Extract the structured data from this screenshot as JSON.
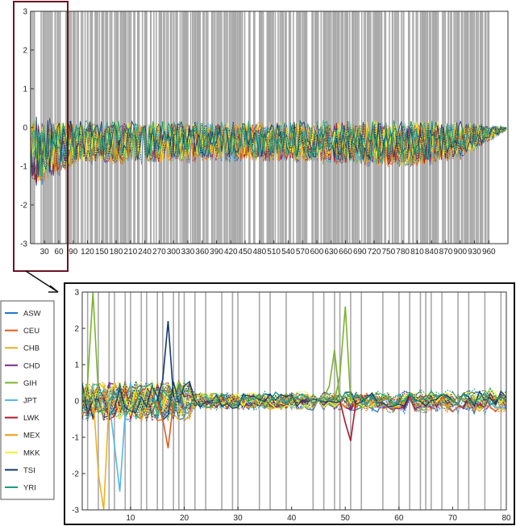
{
  "chart_data": [
    {
      "type": "line",
      "panel": "overview",
      "xlim": [
        1,
        1000
      ],
      "ylim": [
        -3,
        3
      ],
      "yticks": [
        -3,
        -2,
        -1,
        0,
        1,
        2,
        3
      ],
      "xticks": [
        30,
        60,
        90,
        120,
        150,
        180,
        210,
        240,
        270,
        300,
        330,
        360,
        390,
        420,
        450,
        480,
        510,
        540,
        570,
        600,
        630,
        660,
        690,
        720,
        750,
        780,
        810,
        840,
        870,
        900,
        930,
        960
      ],
      "grid": "gray vertical bars at selected positions",
      "amplitude_envelope": {
        "x": [
          1,
          60,
          100,
          300,
          500,
          700,
          800,
          900,
          950,
          1000
        ],
        "y": [
          1.9,
          1.5,
          1.15,
          1.1,
          1.05,
          1.2,
          1.25,
          1.0,
          0.55,
          0.05
        ]
      },
      "highlight_region": {
        "x": [
          1,
          80
        ]
      }
    },
    {
      "type": "line",
      "panel": "zoom",
      "xlim": [
        1,
        80
      ],
      "ylim": [
        -3,
        3
      ],
      "xticks": [
        10,
        20,
        30,
        40,
        50,
        60,
        70,
        80
      ],
      "yticks": [
        -3,
        -2,
        -1,
        0,
        1,
        2,
        3
      ],
      "legend_position": "left",
      "series": [
        {
          "name": "ASW",
          "color": "#1f77d0"
        },
        {
          "name": "CEU",
          "color": "#e05a1a"
        },
        {
          "name": "CHB",
          "color": "#f0b020"
        },
        {
          "name": "CHD",
          "color": "#7a2a8a"
        },
        {
          "name": "GIH",
          "color": "#7ab32e"
        },
        {
          "name": "JPT",
          "color": "#55b8e8"
        },
        {
          "name": "LWK",
          "color": "#b01830"
        },
        {
          "name": "MEX",
          "color": "#f59a10"
        },
        {
          "name": "MKK",
          "color": "#f2f230"
        },
        {
          "name": "TSI",
          "color": "#123a6a"
        },
        {
          "name": "YRI",
          "color": "#14a07a"
        }
      ],
      "gray_lines_x": [
        2,
        4,
        6,
        7,
        9,
        10,
        12,
        13,
        15,
        16,
        18,
        19,
        20,
        22,
        24,
        27,
        29,
        30,
        34,
        36,
        39,
        44,
        46,
        48,
        49,
        51,
        53,
        57,
        60,
        62,
        64,
        65,
        66,
        68,
        71,
        73,
        76,
        79
      ],
      "highlights": [
        {
          "name": "GIH",
          "x": [
            1,
            2,
            3,
            4,
            5
          ],
          "y": [
            0,
            0.5,
            3.0,
            0.2,
            -0.5
          ]
        },
        {
          "name": "CHB",
          "x": [
            3,
            4,
            5,
            6
          ],
          "y": [
            0.2,
            -2.0,
            -3.0,
            0.0
          ]
        },
        {
          "name": "JPT",
          "x": [
            6,
            7,
            8,
            9
          ],
          "y": [
            0.0,
            -1.2,
            -2.5,
            -0.3
          ]
        },
        {
          "name": "TSI",
          "x": [
            15,
            16,
            17,
            18
          ],
          "y": [
            0.0,
            0.6,
            2.2,
            0.1
          ]
        },
        {
          "name": "CEU",
          "x": [
            15,
            16,
            17,
            18
          ],
          "y": [
            0.0,
            -0.5,
            -1.3,
            0.0
          ]
        },
        {
          "name": "GIH",
          "x": [
            46,
            47,
            48,
            49
          ],
          "y": [
            0.1,
            0.4,
            1.4,
            0.0
          ]
        },
        {
          "name": "GIH",
          "x": [
            48,
            49,
            50,
            51
          ],
          "y": [
            0.0,
            0.7,
            2.6,
            0.0
          ]
        },
        {
          "name": "LWK",
          "x": [
            49,
            50,
            51,
            52
          ],
          "y": [
            0.0,
            -0.6,
            -1.1,
            0.0
          ]
        }
      ]
    }
  ]
}
